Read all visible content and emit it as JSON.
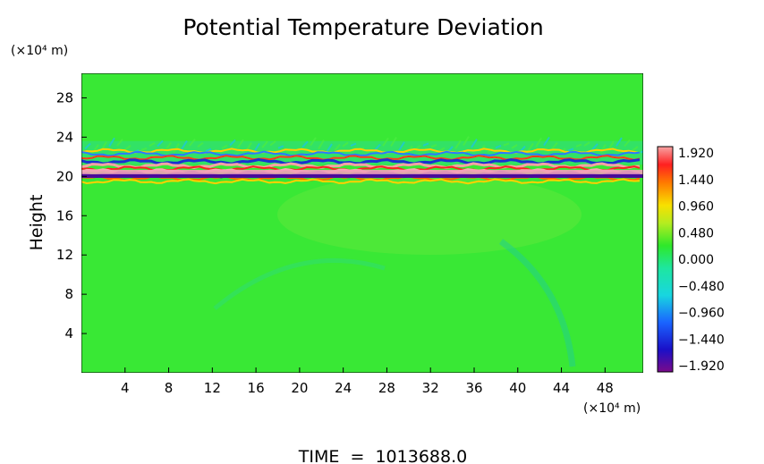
{
  "chart_data": {
    "type": "heatmap",
    "title": "Potential Temperature Deviation",
    "ylabel": "Height",
    "x_unit": "(×10⁴ m)",
    "y_unit": "(×10⁴ m)",
    "x_ticks": [
      4,
      8,
      12,
      16,
      20,
      24,
      28,
      32,
      36,
      40,
      44,
      48
    ],
    "y_ticks": [
      4,
      8,
      12,
      16,
      20,
      24,
      28
    ],
    "xlim": [
      0,
      51.5
    ],
    "ylim": [
      0,
      30.5
    ],
    "colorbar": {
      "labels": [
        "1.920",
        "1.440",
        "0.960",
        "0.480",
        "0.000",
        "−0.480",
        "−0.960",
        "−1.440",
        "−1.920"
      ],
      "min": -1.92,
      "max": 1.92
    },
    "background_value": 0.0,
    "features": [
      {
        "kind": "band",
        "description_ref": "oscillating deviation layer",
        "y_range": [
          19.5,
          23.5
        ]
      }
    ]
  },
  "footer": {
    "time_text": "TIME  =  1013688.0"
  }
}
